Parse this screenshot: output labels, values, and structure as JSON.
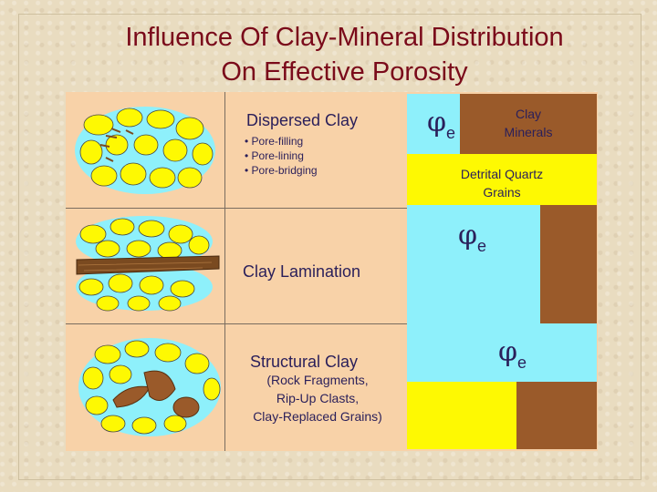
{
  "title": {
    "line1": "Influence Of Clay-Mineral Distribution",
    "line2": "On Effective Porosity"
  },
  "dispersed": {
    "heading": "Dispersed Clay",
    "bullets": [
      "• Pore-filling",
      "• Pore-lining",
      "• Pore-bridging"
    ]
  },
  "lamination": {
    "heading": "Clay Lamination"
  },
  "structural": {
    "heading": "Structural Clay",
    "details": [
      "(Rock Fragments,",
      "Rip-Up Clasts,",
      "Clay-Replaced Grains)"
    ]
  },
  "symbols": {
    "phi": "φ",
    "sub": "e"
  },
  "legend": {
    "clay_minerals": [
      "Clay",
      "Minerals"
    ],
    "detrital_quartz": [
      "Detrital Quartz",
      "Grains"
    ]
  },
  "colors": {
    "pore": "#8ef0fb",
    "quartz": "#fef902",
    "clay": "#9a5a2a",
    "panel": "#f8d2a8",
    "title": "#7a0a1a"
  }
}
